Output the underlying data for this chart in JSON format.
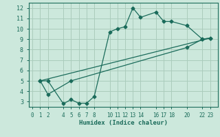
{
  "xlabel": "Humidex (Indice chaleur)",
  "ylabel": "",
  "bg_color": "#cce8dc",
  "grid_color": "#aaccbc",
  "line_color": "#1a6b5a",
  "xlim": [
    -0.5,
    24
  ],
  "ylim": [
    2.5,
    12.5
  ],
  "xticks": [
    0,
    1,
    2,
    4,
    5,
    6,
    7,
    8,
    10,
    11,
    12,
    13,
    14,
    16,
    17,
    18,
    20,
    22,
    23
  ],
  "yticks": [
    3,
    4,
    5,
    6,
    7,
    8,
    9,
    10,
    11,
    12
  ],
  "line1_x": [
    1,
    2,
    4,
    5,
    6,
    7,
    8,
    10,
    11,
    12,
    13,
    14,
    16,
    17,
    18,
    20,
    22,
    23
  ],
  "line1_y": [
    5.0,
    5.0,
    2.8,
    3.2,
    2.85,
    2.85,
    3.5,
    9.7,
    10.0,
    10.2,
    12.0,
    11.1,
    11.6,
    10.7,
    10.7,
    10.3,
    9.0,
    9.1
  ],
  "line2_x": [
    1,
    2,
    5,
    20,
    22,
    23
  ],
  "line2_y": [
    5.0,
    3.7,
    5.0,
    8.2,
    9.0,
    9.1
  ],
  "line3_x": [
    1,
    23
  ],
  "line3_y": [
    5.0,
    9.1
  ]
}
